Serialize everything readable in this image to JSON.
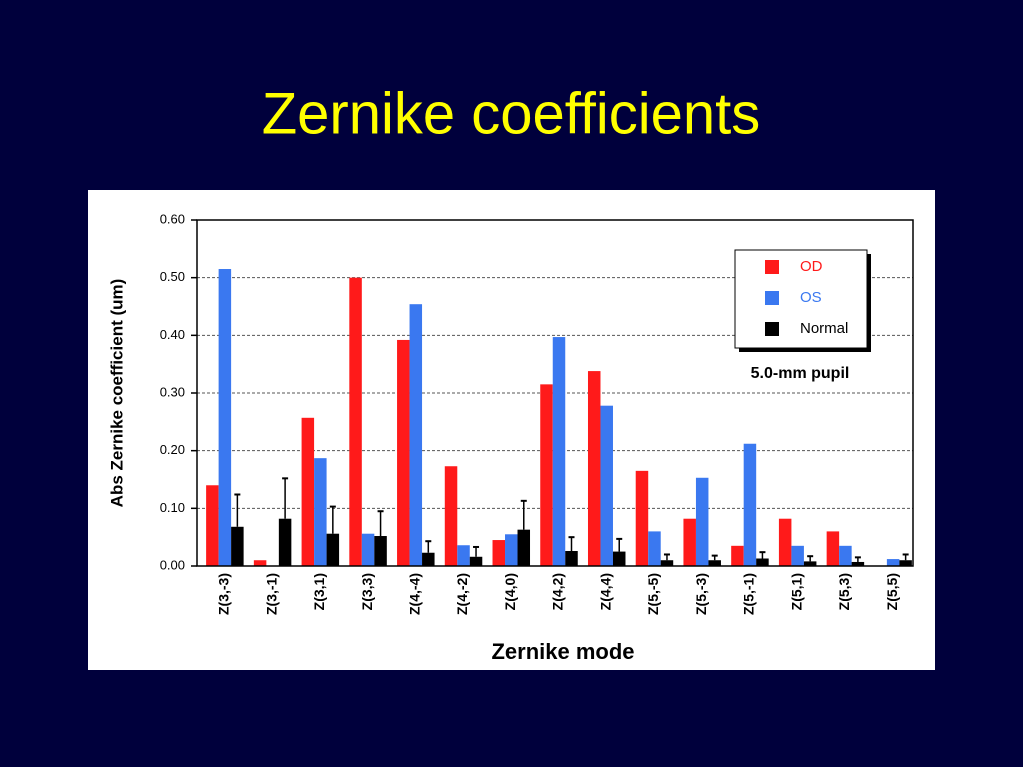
{
  "slide_title": "Zernike coefficients",
  "chart_data": {
    "type": "bar",
    "x_label": "Zernike mode",
    "y_label": "Abs Zernike coefficient (um)",
    "annotation": "5.0-mm pupil",
    "categories": [
      "Z(3,-3)",
      "Z(3,-1)",
      "Z(3,1)",
      "Z(3,3)",
      "Z(4,-4)",
      "Z(4,-2)",
      "Z(4,0)",
      "Z(4,2)",
      "Z(4,4)",
      "Z(5,-5)",
      "Z(5,-3)",
      "Z(5,-1)",
      "Z(5,1)",
      "Z(5,3)",
      "Z(5,5)"
    ],
    "series": [
      {
        "name": "OD",
        "color": "#ff1a1a",
        "values": [
          0.14,
          0.01,
          0.257,
          0.5,
          0.392,
          0.173,
          0.045,
          0.315,
          0.338,
          0.165,
          0.082,
          0.035,
          0.082,
          0.06,
          0
        ]
      },
      {
        "name": "OS",
        "color": "#3a78f0",
        "values": [
          0.515,
          0,
          0.187,
          0.056,
          0.454,
          0.036,
          0.055,
          0.397,
          0.278,
          0.06,
          0.153,
          0.212,
          0.035,
          0.035,
          0.012
        ]
      },
      {
        "name": "Normal",
        "color": "#000000",
        "values": [
          0.068,
          0.082,
          0.056,
          0.052,
          0.023,
          0.016,
          0.063,
          0.026,
          0.025,
          0.01,
          0.01,
          0.013,
          0.008,
          0.007,
          0.01
        ],
        "errors": [
          0.056,
          0.07,
          0.047,
          0.043,
          0.02,
          0.017,
          0.05,
          0.024,
          0.022,
          0.01,
          0.008,
          0.011,
          0.009,
          0.008,
          0.01
        ]
      }
    ],
    "ylim": [
      0,
      0.6
    ],
    "yticks": [
      {
        "value": 0,
        "label": "0.00"
      },
      {
        "value": 0.1,
        "label": "0.10"
      },
      {
        "value": 0.2,
        "label": "0.20"
      },
      {
        "value": 0.3,
        "label": "0.30"
      },
      {
        "value": 0.4,
        "label": "0.40"
      },
      {
        "value": 0.5,
        "label": "0.50"
      },
      {
        "value": 0.6,
        "label": "0.60"
      }
    ],
    "grid": true,
    "legend": "upper right"
  }
}
